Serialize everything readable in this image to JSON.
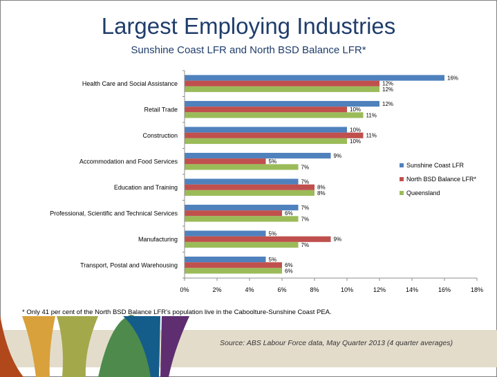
{
  "slide": {
    "title": "Largest Employing Industries",
    "subtitle": "Sunshine Coast LFR and North BSD Balance LFR*",
    "footnote": "* Only 41 per cent of the North BSD Balance LFR’s population live in the Caboolture-Sunshine Coast PEA.",
    "source": "Source: ABS Labour Force data, May Quarter 2013 (4 quarter averages)"
  },
  "colors": {
    "title": "#1f3d6b",
    "banner": [
      "#b0481b",
      "#d9a13b",
      "#a3a84a",
      "#4e8a4c",
      "#145d8a",
      "#5e2e70",
      "#e3dccb"
    ]
  },
  "chart_data": {
    "type": "bar",
    "orientation": "horizontal",
    "categories": [
      "Health Care and Social Assistance",
      "Retail Trade",
      "Construction",
      "Accommodation and Food Services",
      "Education and Training",
      "Professional, Scientific and Technical Services",
      "Manufacturing",
      "Transport, Postal and Warehousing"
    ],
    "series": [
      {
        "name": "Sunshine Coast LFR",
        "color": "#4f81bd",
        "values": [
          16,
          12,
          10,
          9,
          7,
          7,
          5,
          5
        ]
      },
      {
        "name": "North BSD Balance LFR*",
        "color": "#c0504d",
        "values": [
          12,
          10,
          11,
          5,
          8,
          6,
          9,
          6
        ]
      },
      {
        "name": "Queensland",
        "color": "#9bbb59",
        "values": [
          12,
          11,
          10,
          7,
          8,
          7,
          7,
          6
        ]
      }
    ],
    "xlim": [
      0,
      18
    ],
    "xticks": [
      "0%",
      "2%",
      "4%",
      "6%",
      "8%",
      "10%",
      "12%",
      "14%",
      "16%",
      "18%"
    ],
    "value_suffix": "%",
    "grid": false,
    "legend_position": "right"
  }
}
